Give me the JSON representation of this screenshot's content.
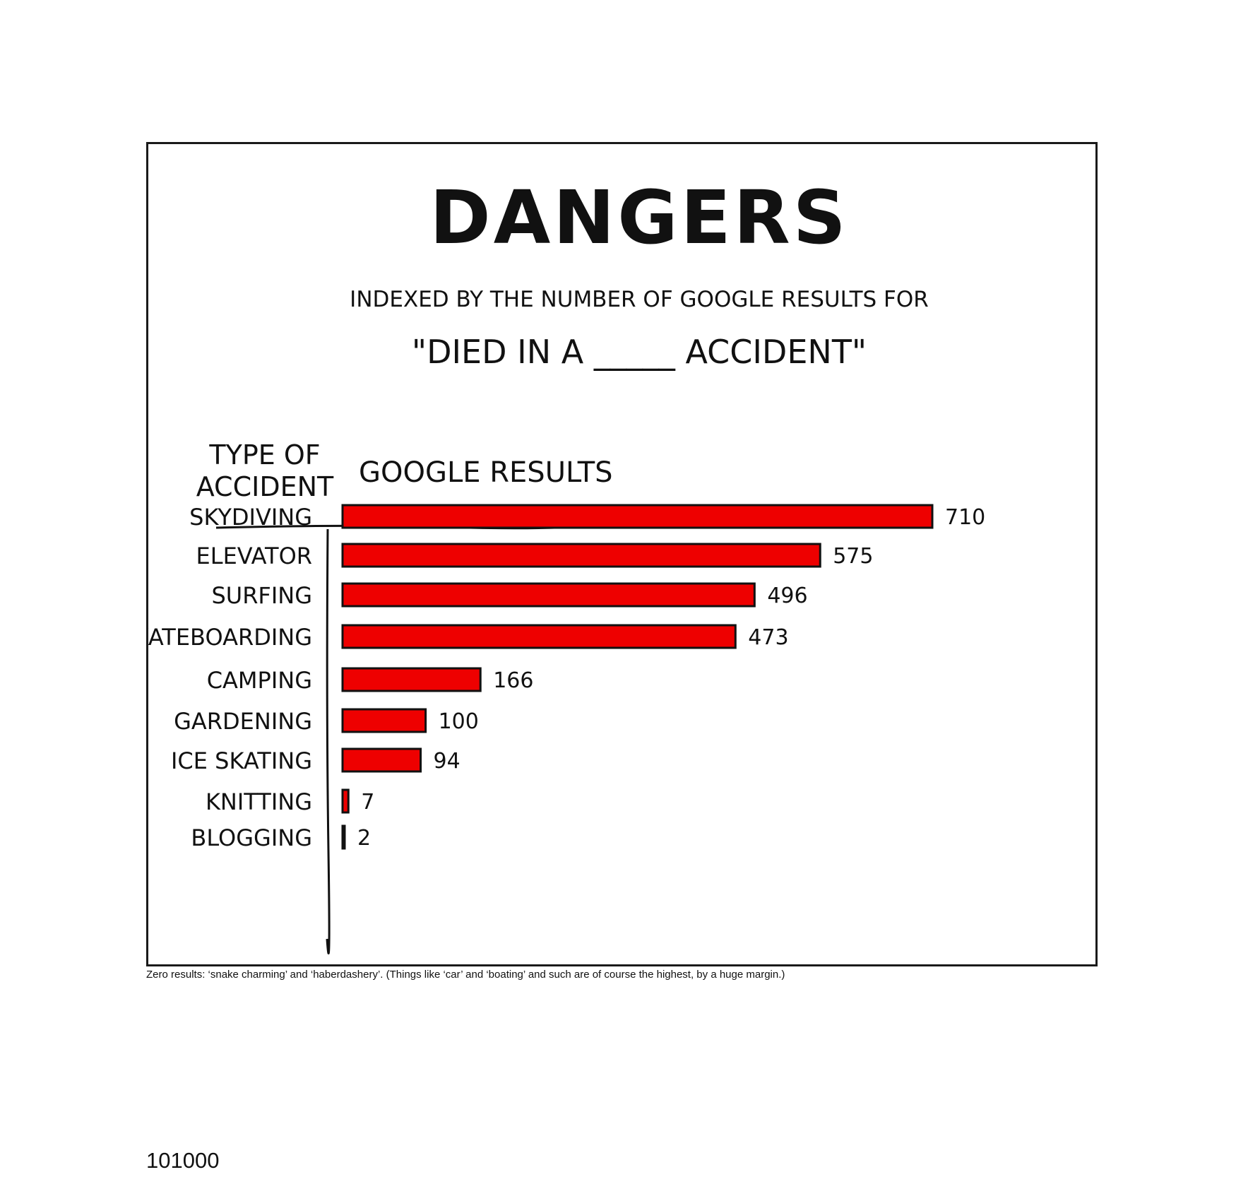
{
  "chart_data": {
    "type": "bar",
    "orientation": "horizontal",
    "title": "DANGERS",
    "subtitle_line1": "INDEXED BY THE NUMBER OF GOOGLE RESULTS FOR",
    "subtitle_line2": "\"DIED IN A _____ ACCIDENT\"",
    "category_header": "TYPE OF ACCIDENT",
    "category_header_line1": "TYPE OF",
    "category_header_line2": "ACCIDENT",
    "value_header": "GOOGLE RESULTS",
    "categories": [
      "SKYDIVING",
      "ELEVATOR",
      "SURFING",
      "SKATEBOARDING",
      "CAMPING",
      "GARDENING",
      "ICE SKATING",
      "KNITTING",
      "BLOGGING"
    ],
    "values": [
      710,
      575,
      496,
      473,
      166,
      100,
      94,
      7,
      2
    ],
    "data_labels": [
      "710",
      "575",
      "496",
      "473",
      "166",
      "100",
      "94",
      "7",
      "2"
    ],
    "xlim": [
      0,
      710
    ],
    "bar_color": "#ee0000",
    "grid": false,
    "legend": "none"
  },
  "caption": "Zero results: ‘snake charming’ and ‘haberdashery’. (Things like ‘car’ and ‘boating’ and such are of course the highest, by a huge margin.)",
  "comic_number": "101000"
}
